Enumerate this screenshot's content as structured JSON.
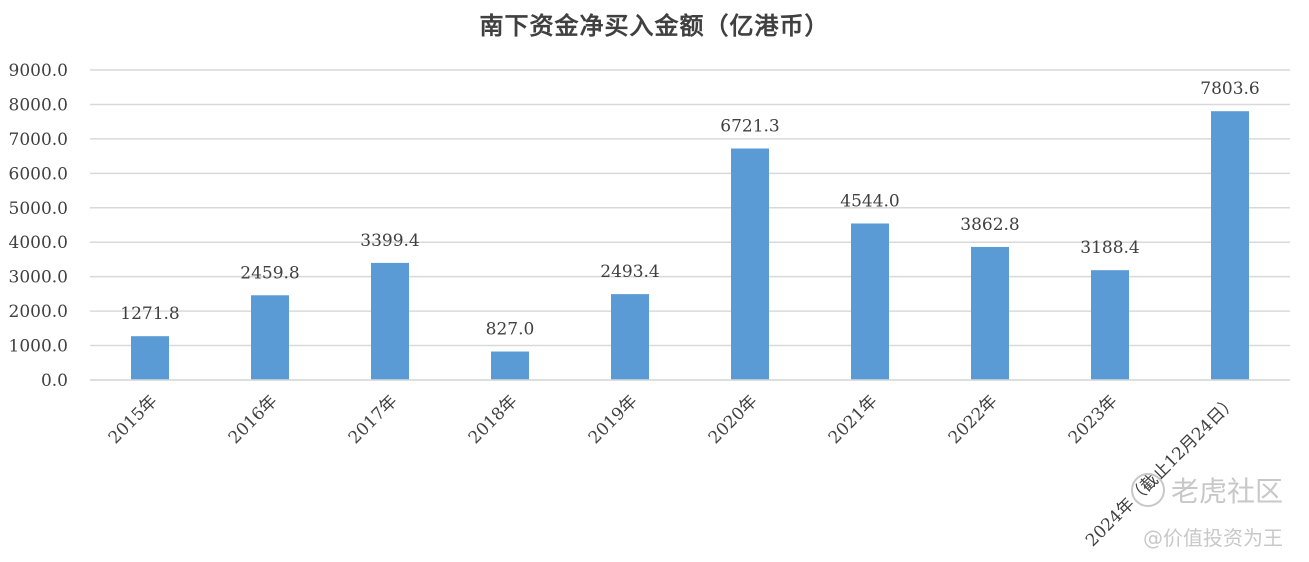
{
  "chart_data": {
    "type": "bar",
    "title": "南下资金净买入金额（亿港币）",
    "categories": [
      "2015年",
      "2016年",
      "2017年",
      "2018年",
      "2019年",
      "2020年",
      "2021年",
      "2022年",
      "2023年",
      "2024年（截止12月24日）"
    ],
    "series": [
      {
        "values": [
          1271.8,
          2459.8,
          3399.4,
          827.0,
          2493.4,
          6721.3,
          4544.0,
          3862.8,
          3188.4,
          7803.6
        ]
      }
    ],
    "data_labels": [
      "1271.8",
      "2459.8",
      "3399.4",
      "827.0",
      "2493.4",
      "6721.3",
      "4544.0",
      "3862.8",
      "3188.4",
      "7803.6"
    ],
    "yticks": [
      "0.0",
      "1000.0",
      "2000.0",
      "3000.0",
      "4000.0",
      "5000.0",
      "6000.0",
      "7000.0",
      "8000.0",
      "9000.0"
    ],
    "ylim": [
      0,
      9000
    ],
    "grid": true,
    "legend": "none",
    "bar_color": "#5b9bd5",
    "grid_color": "#d9d9d9",
    "text_color": "#404040"
  },
  "watermark": {
    "brand": "老虎社区",
    "tagline": "@价值投资为王"
  }
}
